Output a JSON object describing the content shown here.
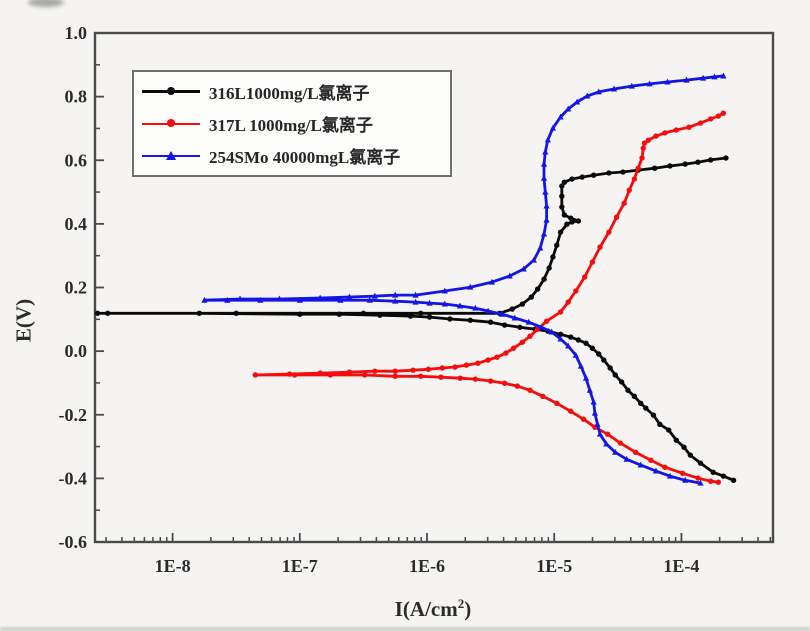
{
  "colors": {
    "background": "#f5f4f2",
    "frame": "#4a4a4a",
    "tick": "#4a4a4a",
    "text": "#2b2b2b",
    "legend_border": "#6f6f6f",
    "series_black": "#0a0a0a",
    "series_red": "#f50d0d",
    "series_blue": "#1414e6"
  },
  "chart_data": {
    "type": "line",
    "title": "",
    "xlabel": {
      "prefix": "I(A/cm",
      "sup": "2",
      "suffix": ")"
    },
    "ylabel": "E(V)",
    "x_axis": {
      "scale": "log10",
      "min_log": -8.61,
      "max_log": -3.28,
      "major_ticks": [
        {
          "label": "1E-8",
          "log": -8
        },
        {
          "label": "1E-7",
          "log": -7
        },
        {
          "label": "1E-6",
          "log": -6
        },
        {
          "label": "1E-5",
          "log": -5
        },
        {
          "label": "1E-4",
          "log": -4
        }
      ],
      "minor_tick_mantissas": [
        2,
        3,
        4,
        5,
        6,
        7,
        8,
        9
      ]
    },
    "y_axis": {
      "min": -0.6,
      "max": 1.0,
      "major_step": 0.2,
      "minor_step": 0.1,
      "tick_labels": [
        "1.0",
        "0.8",
        "0.6",
        "0.4",
        "0.2",
        "0.0",
        "-0.2",
        "-0.4",
        "-0.6"
      ]
    },
    "legend_position": "top-left",
    "series": [
      {
        "name": "316L",
        "label": "316L1000mg/L氯离子",
        "color": "#0a0a0a",
        "marker": "circle",
        "ecorr_V": 0.12,
        "points": [
          [
            -3.59,
            -0.406
          ],
          [
            -3.67,
            -0.393
          ],
          [
            -3.75,
            -0.381
          ],
          [
            -3.85,
            -0.352
          ],
          [
            -3.93,
            -0.327
          ],
          [
            -3.98,
            -0.302
          ],
          [
            -4.04,
            -0.28
          ],
          [
            -4.1,
            -0.248
          ],
          [
            -4.17,
            -0.23
          ],
          [
            -4.22,
            -0.201
          ],
          [
            -4.28,
            -0.179
          ],
          [
            -4.32,
            -0.164
          ],
          [
            -4.37,
            -0.142
          ],
          [
            -4.42,
            -0.123
          ],
          [
            -4.47,
            -0.097
          ],
          [
            -4.52,
            -0.075
          ],
          [
            -4.56,
            -0.053
          ],
          [
            -4.61,
            -0.028
          ],
          [
            -4.65,
            -0.009
          ],
          [
            -4.7,
            0.009
          ],
          [
            -4.75,
            0.025
          ],
          [
            -4.81,
            0.035
          ],
          [
            -4.87,
            0.044
          ],
          [
            -4.95,
            0.053
          ],
          [
            -5.05,
            0.063
          ],
          [
            -5.15,
            0.069
          ],
          [
            -5.27,
            0.075
          ],
          [
            -5.39,
            0.082
          ],
          [
            -5.5,
            0.091
          ],
          [
            -5.66,
            0.097
          ],
          [
            -5.82,
            0.101
          ],
          [
            -5.98,
            0.107
          ],
          [
            -6.13,
            0.11
          ],
          [
            -6.37,
            0.113
          ],
          [
            -6.69,
            0.116
          ],
          [
            -7.0,
            0.116
          ],
          [
            -7.79,
            0.119
          ],
          [
            -8.51,
            0.119
          ],
          [
            -8.59,
            0.119
          ],
          [
            -7.5,
            0.119
          ],
          [
            -6.5,
            0.119
          ],
          [
            -6.05,
            0.119
          ],
          [
            -5.43,
            0.119
          ],
          [
            -5.33,
            0.132
          ],
          [
            -5.25,
            0.148
          ],
          [
            -5.18,
            0.17
          ],
          [
            -5.13,
            0.195
          ],
          [
            -5.08,
            0.226
          ],
          [
            -5.04,
            0.261
          ],
          [
            -5.01,
            0.296
          ],
          [
            -4.98,
            0.333
          ],
          [
            -4.95,
            0.374
          ],
          [
            -4.9,
            0.399
          ],
          [
            -4.86,
            0.406
          ],
          [
            -4.81,
            0.409
          ],
          [
            -4.87,
            0.418
          ],
          [
            -4.92,
            0.428
          ],
          [
            -4.94,
            0.453
          ],
          [
            -4.94,
            0.487
          ],
          [
            -4.94,
            0.519
          ],
          [
            -4.92,
            0.531
          ],
          [
            -4.86,
            0.541
          ],
          [
            -4.78,
            0.547
          ],
          [
            -4.69,
            0.553
          ],
          [
            -4.57,
            0.56
          ],
          [
            -4.46,
            0.563
          ],
          [
            -4.34,
            0.569
          ],
          [
            -4.21,
            0.575
          ],
          [
            -4.09,
            0.582
          ],
          [
            -3.97,
            0.588
          ],
          [
            -3.87,
            0.594
          ],
          [
            -3.77,
            0.601
          ],
          [
            -3.65,
            0.607
          ]
        ]
      },
      {
        "name": "317L",
        "label": "317L 1000mg/L氯离子",
        "color": "#f50d0d",
        "marker": "circle",
        "ecorr_V": -0.075,
        "points": [
          [
            -3.71,
            -0.412
          ],
          [
            -3.77,
            -0.409
          ],
          [
            -3.87,
            -0.399
          ],
          [
            -3.99,
            -0.384
          ],
          [
            -4.13,
            -0.365
          ],
          [
            -4.24,
            -0.343
          ],
          [
            -4.36,
            -0.318
          ],
          [
            -4.48,
            -0.289
          ],
          [
            -4.58,
            -0.261
          ],
          [
            -4.68,
            -0.239
          ],
          [
            -4.77,
            -0.214
          ],
          [
            -4.87,
            -0.189
          ],
          [
            -4.98,
            -0.164
          ],
          [
            -5.09,
            -0.142
          ],
          [
            -5.19,
            -0.123
          ],
          [
            -5.29,
            -0.11
          ],
          [
            -5.39,
            -0.101
          ],
          [
            -5.5,
            -0.094
          ],
          [
            -5.62,
            -0.088
          ],
          [
            -5.74,
            -0.085
          ],
          [
            -5.89,
            -0.082
          ],
          [
            -6.05,
            -0.079
          ],
          [
            -6.25,
            -0.079
          ],
          [
            -6.49,
            -0.075
          ],
          [
            -6.76,
            -0.075
          ],
          [
            -7.04,
            -0.075
          ],
          [
            -7.35,
            -0.075
          ],
          [
            -7.08,
            -0.072
          ],
          [
            -6.84,
            -0.069
          ],
          [
            -6.61,
            -0.066
          ],
          [
            -6.41,
            -0.063
          ],
          [
            -6.25,
            -0.063
          ],
          [
            -6.11,
            -0.06
          ],
          [
            -5.99,
            -0.057
          ],
          [
            -5.88,
            -0.053
          ],
          [
            -5.78,
            -0.05
          ],
          [
            -5.69,
            -0.044
          ],
          [
            -5.6,
            -0.038
          ],
          [
            -5.52,
            -0.028
          ],
          [
            -5.45,
            -0.019
          ],
          [
            -5.38,
            -0.006
          ],
          [
            -5.32,
            0.009
          ],
          [
            -5.25,
            0.028
          ],
          [
            -5.19,
            0.047
          ],
          [
            -5.13,
            0.069
          ],
          [
            -5.06,
            0.094
          ],
          [
            -4.95,
            0.123
          ],
          [
            -4.89,
            0.154
          ],
          [
            -4.83,
            0.189
          ],
          [
            -4.76,
            0.233
          ],
          [
            -4.7,
            0.28
          ],
          [
            -4.64,
            0.327
          ],
          [
            -4.57,
            0.374
          ],
          [
            -4.51,
            0.421
          ],
          [
            -4.45,
            0.465
          ],
          [
            -4.41,
            0.506
          ],
          [
            -4.37,
            0.541
          ],
          [
            -4.34,
            0.575
          ],
          [
            -4.31,
            0.607
          ],
          [
            -4.3,
            0.638
          ],
          [
            -4.29,
            0.654
          ],
          [
            -4.26,
            0.663
          ],
          [
            -4.2,
            0.676
          ],
          [
            -4.13,
            0.686
          ],
          [
            -4.04,
            0.695
          ],
          [
            -3.94,
            0.704
          ],
          [
            -3.85,
            0.717
          ],
          [
            -3.77,
            0.73
          ],
          [
            -3.71,
            0.739
          ],
          [
            -3.67,
            0.748
          ]
        ]
      },
      {
        "name": "254SMo",
        "label": "254SMo 40000mgL氯离子",
        "color": "#1414e6",
        "marker": "triangle",
        "ecorr_V": 0.16,
        "points": [
          [
            -3.85,
            -0.415
          ],
          [
            -3.97,
            -0.406
          ],
          [
            -4.09,
            -0.393
          ],
          [
            -4.2,
            -0.377
          ],
          [
            -4.32,
            -0.358
          ],
          [
            -4.43,
            -0.34
          ],
          [
            -4.52,
            -0.318
          ],
          [
            -4.59,
            -0.292
          ],
          [
            -4.64,
            -0.261
          ],
          [
            -4.66,
            -0.23
          ],
          [
            -4.68,
            -0.195
          ],
          [
            -4.69,
            -0.16
          ],
          [
            -4.72,
            -0.123
          ],
          [
            -4.75,
            -0.085
          ],
          [
            -4.79,
            -0.047
          ],
          [
            -4.83,
            -0.013
          ],
          [
            -4.89,
            0.016
          ],
          [
            -4.95,
            0.038
          ],
          [
            -5.02,
            0.06
          ],
          [
            -5.1,
            0.075
          ],
          [
            -5.2,
            0.091
          ],
          [
            -5.31,
            0.104
          ],
          [
            -5.41,
            0.116
          ],
          [
            -5.52,
            0.126
          ],
          [
            -5.62,
            0.135
          ],
          [
            -5.74,
            0.142
          ],
          [
            -5.86,
            0.148
          ],
          [
            -5.98,
            0.151
          ],
          [
            -6.09,
            0.154
          ],
          [
            -6.25,
            0.157
          ],
          [
            -6.45,
            0.16
          ],
          [
            -6.68,
            0.16
          ],
          [
            -7.0,
            0.16
          ],
          [
            -7.31,
            0.16
          ],
          [
            -7.57,
            0.16
          ],
          [
            -7.75,
            0.16
          ],
          [
            -7.47,
            0.164
          ],
          [
            -7.16,
            0.164
          ],
          [
            -6.84,
            0.167
          ],
          [
            -6.61,
            0.17
          ],
          [
            -6.41,
            0.173
          ],
          [
            -6.25,
            0.176
          ],
          [
            -6.09,
            0.176
          ],
          [
            -5.86,
            0.189
          ],
          [
            -5.66,
            0.201
          ],
          [
            -5.49,
            0.217
          ],
          [
            -5.35,
            0.236
          ],
          [
            -5.24,
            0.258
          ],
          [
            -5.16,
            0.286
          ],
          [
            -5.11,
            0.324
          ],
          [
            -5.08,
            0.368
          ],
          [
            -5.06,
            0.412
          ],
          [
            -5.06,
            0.456
          ],
          [
            -5.07,
            0.5
          ],
          [
            -5.08,
            0.544
          ],
          [
            -5.08,
            0.588
          ],
          [
            -5.07,
            0.626
          ],
          [
            -5.05,
            0.664
          ],
          [
            -5.01,
            0.701
          ],
          [
            -4.95,
            0.736
          ],
          [
            -4.89,
            0.761
          ],
          [
            -4.82,
            0.783
          ],
          [
            -4.74,
            0.802
          ],
          [
            -4.65,
            0.815
          ],
          [
            -4.53,
            0.824
          ],
          [
            -4.39,
            0.833
          ],
          [
            -4.25,
            0.84
          ],
          [
            -4.11,
            0.846
          ],
          [
            -3.96,
            0.852
          ],
          [
            -3.83,
            0.858
          ],
          [
            -3.74,
            0.862
          ],
          [
            -3.67,
            0.865
          ]
        ]
      }
    ]
  }
}
